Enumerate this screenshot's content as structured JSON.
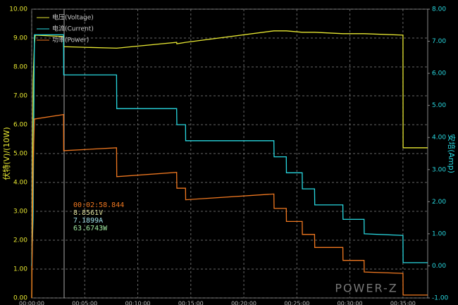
{
  "chart_data": {
    "type": "line",
    "x": [
      0,
      8,
      15,
      20,
      180,
      181,
      480,
      481,
      820,
      821,
      870,
      871,
      1370,
      1371,
      1440,
      1441,
      1530,
      1531,
      1600,
      1601,
      1760,
      1761,
      1880,
      1881,
      2100,
      2101,
      2240
    ],
    "series": [
      {
        "name": "电压(Voltage)",
        "color": "#e8e832",
        "values": [
          0,
          7.5,
          8.8,
          9.1,
          9.05,
          8.7,
          8.65,
          8.65,
          8.85,
          8.8,
          8.85,
          8.85,
          9.25,
          9.25,
          9.25,
          9.25,
          9.2,
          9.2,
          9.2,
          9.2,
          9.15,
          9.15,
          9.15,
          9.15,
          9.1,
          5.2,
          5.2
        ]
      },
      {
        "name": "电流(Current)",
        "color": "#28d8e0",
        "axis": "y2",
        "values": [
          0,
          1.5,
          7.2,
          7.2,
          7.2,
          5.95,
          5.95,
          4.9,
          4.9,
          4.4,
          4.4,
          3.9,
          3.9,
          3.4,
          3.4,
          2.9,
          2.9,
          2.4,
          2.4,
          1.9,
          1.9,
          1.45,
          1.45,
          1.0,
          0.95,
          0.1,
          0.1
        ]
      },
      {
        "name": "功率(Power)",
        "color": "#f07820",
        "values": [
          0,
          4.5,
          6.2,
          6.2,
          6.35,
          5.1,
          5.2,
          4.2,
          4.35,
          3.8,
          3.8,
          3.4,
          3.6,
          3.1,
          3.1,
          2.65,
          2.65,
          2.2,
          2.2,
          1.75,
          1.75,
          1.3,
          1.3,
          0.9,
          0.85,
          0.1,
          0.1
        ]
      }
    ],
    "xlim": [
      0,
      2240
    ],
    "xticks": [
      {
        "value": 0,
        "label": "00:00:00"
      },
      {
        "value": 300,
        "label": "00:05:00"
      },
      {
        "value": 600,
        "label": "00:10:00"
      },
      {
        "value": 900,
        "label": "00:15:00"
      },
      {
        "value": 1200,
        "label": "00:20:00"
      },
      {
        "value": 1500,
        "label": "00:25:00"
      },
      {
        "value": 1800,
        "label": "00:30:00"
      },
      {
        "value": 2100,
        "label": "00:35:00"
      }
    ],
    "ylim": [
      0,
      10
    ],
    "yticks": [
      {
        "value": 0,
        "label": "0.00"
      },
      {
        "value": 1,
        "label": "1.00"
      },
      {
        "value": 2,
        "label": "2.00"
      },
      {
        "value": 3,
        "label": "3.00"
      },
      {
        "value": 4,
        "label": "4.00"
      },
      {
        "value": 5,
        "label": "5.00"
      },
      {
        "value": 6,
        "label": "6.00"
      },
      {
        "value": 7,
        "label": "7.00"
      },
      {
        "value": 8,
        "label": "8.00"
      },
      {
        "value": 9,
        "label": "9.00"
      },
      {
        "value": 10,
        "label": "10.00"
      }
    ],
    "y2lim": [
      -1,
      8
    ],
    "y2ticks": [
      {
        "value": -1,
        "label": "-1.00"
      },
      {
        "value": 0,
        "label": "0.00"
      },
      {
        "value": 1,
        "label": "1.00"
      },
      {
        "value": 2,
        "label": "2.00"
      },
      {
        "value": 3,
        "label": "3.00"
      },
      {
        "value": 4,
        "label": "4.00"
      },
      {
        "value": 5,
        "label": "5.00"
      },
      {
        "value": 6,
        "label": "6.00"
      },
      {
        "value": 7,
        "label": "7.00"
      },
      {
        "value": 8,
        "label": "8.00"
      }
    ],
    "ylabel": "伏特(V)/(10W)",
    "y2label": "安培(Amp)",
    "annotations": [
      "00:02:58.844",
      "8.8561V",
      "7.1899A",
      "63.6743W"
    ],
    "watermark": "POWER-Z",
    "grid": true
  }
}
